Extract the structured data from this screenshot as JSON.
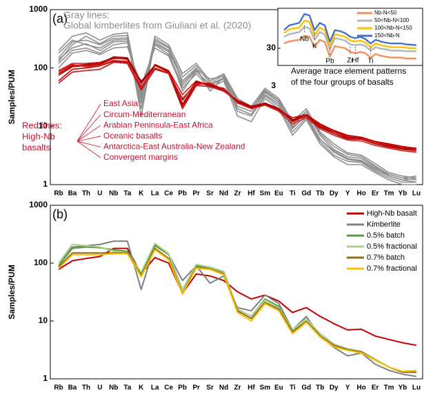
{
  "chart_data": [
    {
      "type": "line",
      "panel_label": "(a)",
      "y_label": "Samples/PUM",
      "log_y": true,
      "ylim": [
        1,
        1000
      ],
      "yticks": [
        1,
        10,
        100,
        1000
      ],
      "categories": [
        "Rb",
        "Ba",
        "Th",
        "U",
        "Nb",
        "Ta",
        "K",
        "La",
        "Ce",
        "Pb",
        "Pr",
        "Sr",
        "Nd",
        "Zr",
        "Hf",
        "Sm",
        "Eu",
        "Ti",
        "Gd",
        "Tb",
        "Dy",
        "Y",
        "Ho",
        "Er",
        "Tm",
        "Yb",
        "Lu"
      ],
      "gray_note": [
        "Gray lines:",
        "Global kimberlites from Giuliani et al. (2020)"
      ],
      "red_note": [
        "Red lines:",
        "High-Nb",
        "basalts"
      ],
      "gray_series": [
        {
          "color": "#8f8f8f",
          "values": [
            150,
            280,
            300,
            250,
            320,
            330,
            15,
            300,
            220,
            70,
            110,
            55,
            75,
            25,
            20,
            40,
            28,
            10,
            18,
            7,
            4,
            3,
            2.8,
            2,
            1.4,
            1.2,
            1.1
          ]
        },
        {
          "color": "#8f8f8f",
          "values": [
            120,
            200,
            220,
            180,
            250,
            270,
            40,
            250,
            170,
            50,
            90,
            50,
            65,
            18,
            15,
            33,
            22,
            8,
            14,
            5.5,
            3.2,
            2.5,
            2.4,
            1.7,
            1.3,
            1.1,
            1.1
          ]
        },
        {
          "color": "#8f8f8f",
          "values": [
            200,
            350,
            400,
            300,
            380,
            400,
            25,
            350,
            250,
            80,
            120,
            60,
            80,
            30,
            22,
            45,
            30,
            12,
            20,
            8,
            5,
            3.5,
            3.2,
            2.3,
            1.6,
            1.4,
            1.3
          ]
        },
        {
          "color": "#8f8f8f",
          "values": [
            100,
            180,
            200,
            170,
            220,
            230,
            50,
            220,
            160,
            45,
            80,
            45,
            60,
            15,
            12,
            30,
            20,
            7,
            13,
            5,
            3,
            2.2,
            2.2,
            1.6,
            1.2,
            1.0,
            1.0
          ]
        },
        {
          "color": "#8f8f8f",
          "values": [
            180,
            300,
            250,
            220,
            300,
            310,
            20,
            280,
            200,
            60,
            100,
            40,
            70,
            22,
            18,
            38,
            26,
            9,
            16,
            6,
            3.8,
            2.8,
            2.6,
            1.9,
            1.5,
            1.3,
            1.4
          ]
        },
        {
          "color": "#8f8f8f",
          "values": [
            130,
            250,
            350,
            260,
            350,
            360,
            30,
            320,
            230,
            55,
            95,
            65,
            72,
            28,
            20,
            42,
            28,
            11,
            18,
            7.5,
            4.5,
            3.3,
            3,
            2.1,
            1.5,
            1.3,
            1.2
          ]
        },
        {
          "color": "#8f8f8f",
          "values": [
            140,
            220,
            260,
            200,
            280,
            290,
            35,
            260,
            190,
            40,
            88,
            52,
            68,
            20,
            16,
            35,
            24,
            9.5,
            15,
            6,
            3.6,
            2.7,
            2.5,
            1.8,
            1.4,
            1.2,
            1.3
          ]
        }
      ],
      "series": [
        {
          "name": "East Asia",
          "color": "#c00000",
          "values": [
            60,
            95,
            100,
            108,
            130,
            125,
            60,
            100,
            80,
            22,
            52,
            55,
            40,
            28,
            22,
            24,
            19,
            14,
            16,
            11,
            8.5,
            7,
            6.5,
            5.5,
            5,
            4.5,
            4.2
          ]
        },
        {
          "name": "Circum-Mediterranean",
          "color": "#d01818",
          "values": [
            90,
            120,
            120,
            125,
            150,
            140,
            45,
            115,
            90,
            35,
            60,
            50,
            45,
            26,
            21,
            25,
            20,
            12,
            15,
            10,
            7.5,
            6,
            6,
            5,
            4.4,
            4,
            3.8
          ]
        },
        {
          "name": "Arabian Peninsula-East Africa",
          "color": "#b00000",
          "values": [
            75,
            105,
            110,
            115,
            145,
            145,
            55,
            110,
            85,
            24,
            56,
            50,
            42,
            27,
            22,
            25,
            20,
            13,
            16,
            10,
            8,
            6.5,
            6.3,
            5.3,
            4.7,
            4.3,
            4.1
          ]
        },
        {
          "name": "Oceanic basalts",
          "color": "#c81010",
          "values": [
            55,
            85,
            90,
            95,
            125,
            120,
            42,
            95,
            80,
            20,
            50,
            48,
            40,
            27,
            21,
            24,
            19,
            14,
            16,
            10.5,
            8.2,
            6.8,
            6.5,
            5.4,
            4.8,
            4.4,
            4.2
          ]
        },
        {
          "name": "Antarctica-East Australia-New Zealand",
          "color": "#a80000",
          "values": [
            80,
            110,
            115,
            120,
            155,
            150,
            58,
            112,
            88,
            28,
            58,
            52,
            44,
            26,
            21,
            24,
            19,
            12.5,
            15,
            9.5,
            7.5,
            6.2,
            6,
            5,
            4.5,
            4.1,
            4
          ]
        },
        {
          "name": "Convergent margins",
          "color": "#d42020",
          "values": [
            85,
            115,
            105,
            110,
            135,
            130,
            48,
            100,
            82,
            30,
            54,
            55,
            43,
            25,
            20,
            23,
            18,
            11,
            14,
            9,
            7,
            5.8,
            5.6,
            4.7,
            4.2,
            3.8,
            3.6
          ]
        }
      ],
      "inset": {
        "type": "line",
        "log_y": true,
        "ylim": [
          3,
          300
        ],
        "yticks": [
          3,
          30
        ],
        "categories": [
          "Rb",
          "Ba",
          "Th",
          "U",
          "Nb",
          "Ta",
          "K",
          "La",
          "Ce",
          "Pb",
          "Pr",
          "Sr",
          "Nd",
          "Zr",
          "Hf",
          "Sm",
          "Eu",
          "Ti",
          "Gd",
          "Tb",
          "Dy",
          "Y",
          "Ho",
          "Er",
          "Tm",
          "Yb",
          "Lu"
        ],
        "caption": [
          "Average trace element patterns",
          "of the four groups of basalts"
        ],
        "series": [
          {
            "name": "Nb-N<50",
            "color": "#f0905a",
            "values": [
              40,
              45,
              48,
              50,
              64,
              60,
              32,
              50,
              44,
              18,
              34,
              32,
              30,
              24,
              22,
              24,
              22,
              17,
              21,
              19,
              18,
              17,
              17,
              17,
              16,
              16,
              16
            ]
          },
          {
            "name": "50<Nb-N<100",
            "color": "#b4b4b4",
            "values": [
              60,
              70,
              75,
              80,
              110,
              100,
              50,
              80,
              70,
              28,
              55,
              52,
              48,
              38,
              36,
              38,
              34,
              26,
              32,
              29,
              28,
              26,
              26,
              26,
              25,
              25,
              25
            ]
          },
          {
            "name": "100<Nb-N<150",
            "color": "#ffc000",
            "values": [
              75,
              95,
              100,
              105,
              160,
              150,
              65,
              105,
              90,
              35,
              70,
              65,
              60,
              48,
              45,
              48,
              42,
              32,
              40,
              36,
              34,
              32,
              32,
              32,
              31,
              30,
              30
            ]
          },
          {
            "name": "150<Nb-N",
            "color": "#4472c4",
            "values": [
              90,
              120,
              130,
              140,
              240,
              220,
              90,
              140,
              120,
              45,
              90,
              85,
              75,
              60,
              55,
              60,
              52,
              40,
              50,
              45,
              42,
              40,
              40,
              40,
              38,
              37,
              36
            ]
          }
        ]
      }
    },
    {
      "type": "line",
      "panel_label": "(b)",
      "y_label": "Samples/PUM",
      "log_y": true,
      "ylim": [
        1,
        1000
      ],
      "yticks": [
        1,
        10,
        100,
        1000
      ],
      "legend": "upper right",
      "categories": [
        "Rb",
        "Ba",
        "Th",
        "U",
        "Nb",
        "Ta",
        "K",
        "La",
        "Ce",
        "Pb",
        "Pr",
        "Sr",
        "Nd",
        "Zr",
        "Hf",
        "Sm",
        "Eu",
        "Ti",
        "Gd",
        "Tb",
        "Dy",
        "Y",
        "Ho",
        "Er",
        "Tm",
        "Yb",
        "Lu"
      ],
      "series": [
        {
          "name": "High-Nb basalt",
          "color": "#c00000",
          "values": [
            78,
            110,
            120,
            130,
            180,
            180,
            65,
            125,
            100,
            30,
            65,
            60,
            50,
            32,
            24,
            28,
            22,
            14,
            17,
            12,
            9,
            7,
            7.2,
            5.5,
            4.8,
            4.2,
            3.8
          ]
        },
        {
          "name": "Kimberlite",
          "color": "#808080",
          "values": [
            100,
            190,
            200,
            210,
            240,
            240,
            35,
            210,
            140,
            50,
            90,
            45,
            60,
            17,
            15,
            28,
            20,
            7,
            12,
            5.5,
            3.5,
            2.5,
            2.8,
            1.8,
            1.4,
            1.2,
            1.1
          ]
        },
        {
          "name": "0.5% batch",
          "color": "#5b9b3c",
          "values": [
            90,
            180,
            190,
            185,
            170,
            160,
            65,
            200,
            140,
            35,
            90,
            85,
            70,
            16,
            12,
            24,
            18,
            7,
            11,
            6,
            4,
            3.3,
            3,
            2.2,
            1.6,
            1.3,
            1.3
          ]
        },
        {
          "name": "0.5% fractional",
          "color": "#a9d18e",
          "values": [
            100,
            210,
            200,
            190,
            160,
            150,
            70,
            220,
            145,
            35,
            95,
            85,
            72,
            16,
            12,
            23,
            17,
            7,
            11,
            6,
            4,
            3.3,
            3,
            2.2,
            1.6,
            1.3,
            1.3
          ]
        },
        {
          "name": "0.7% batch",
          "color": "#8c6a1a",
          "values": [
            85,
            150,
            150,
            150,
            150,
            150,
            60,
            180,
            120,
            30,
            85,
            80,
            65,
            15,
            11,
            21,
            16,
            6.5,
            10,
            5.5,
            3.8,
            3.2,
            2.9,
            2.1,
            1.6,
            1.3,
            1.3
          ]
        },
        {
          "name": "0.7% fractional",
          "color": "#ffc000",
          "values": [
            80,
            140,
            140,
            140,
            145,
            145,
            58,
            170,
            115,
            29,
            82,
            78,
            63,
            14,
            10,
            20,
            15,
            6,
            9.5,
            5.3,
            3.6,
            3.1,
            2.8,
            2.1,
            1.6,
            1.35,
            1.4
          ]
        }
      ]
    }
  ]
}
